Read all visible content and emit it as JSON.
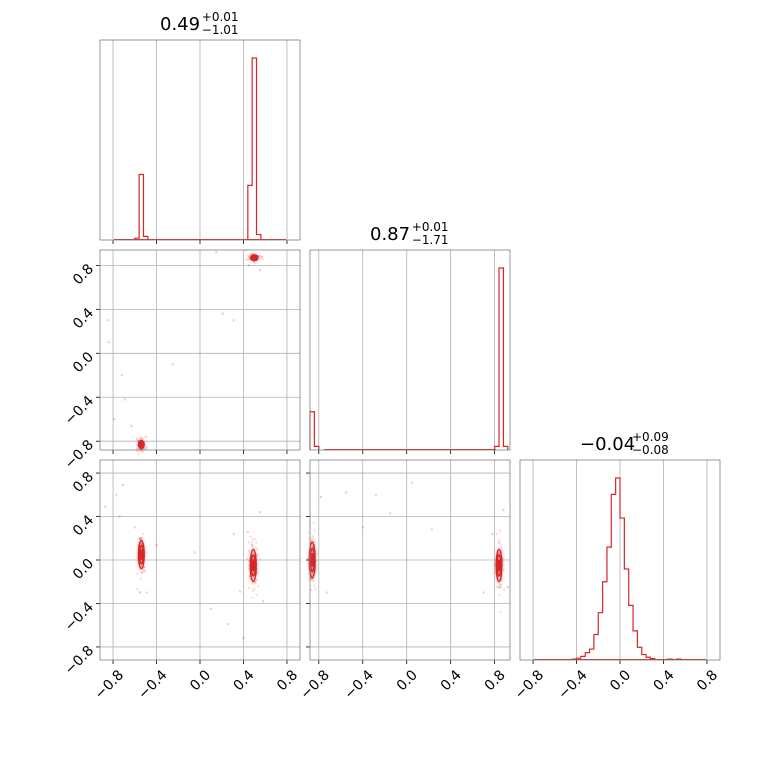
{
  "chart_data": {
    "type": "corner",
    "color": "#d62728",
    "grid": true,
    "ticks": [
      -0.8,
      -0.4,
      0.0,
      0.4,
      0.8
    ],
    "tick_labels": [
      "−0.8",
      "−0.4",
      "0.0",
      "0.4",
      "0.8"
    ],
    "parameters": [
      {
        "title": {
          "median": "0.49",
          "plus": "+0.01",
          "minus": "−1.01"
        },
        "range": [
          -0.92,
          0.92
        ],
        "histogram": {
          "bin_width": 0.04,
          "bins": [
            [
              -0.6,
              0.01
            ],
            [
              -0.56,
              0.36
            ],
            [
              -0.52,
              0.02
            ],
            [
              0.44,
              0.3
            ],
            [
              0.48,
              1.0
            ],
            [
              0.52,
              0.03
            ]
          ]
        }
      },
      {
        "title": {
          "median": "0.87",
          "plus": "+0.01",
          "minus": "−1.71"
        },
        "range": [
          -0.88,
          0.94
        ],
        "histogram": {
          "bin_width": 0.04,
          "bins": [
            [
              -0.88,
              0.21
            ],
            [
              -0.84,
              0.02
            ],
            [
              0.8,
              0.02
            ],
            [
              0.84,
              1.0
            ],
            [
              0.88,
              0.02
            ]
          ]
        }
      },
      {
        "title": {
          "median": "−0.04",
          "plus": "+0.09",
          "minus": "−0.08"
        },
        "range": [
          -0.92,
          0.92
        ],
        "histogram": {
          "bin_width": 0.04,
          "bins": [
            [
              -0.44,
              0.005
            ],
            [
              -0.4,
              0.01
            ],
            [
              -0.36,
              0.02
            ],
            [
              -0.32,
              0.04
            ],
            [
              -0.28,
              0.06
            ],
            [
              -0.24,
              0.14
            ],
            [
              -0.2,
              0.26
            ],
            [
              -0.16,
              0.43
            ],
            [
              -0.12,
              0.62
            ],
            [
              -0.08,
              0.91
            ],
            [
              -0.04,
              1.0
            ],
            [
              0.0,
              0.78
            ],
            [
              0.04,
              0.5
            ],
            [
              0.08,
              0.3
            ],
            [
              0.12,
              0.16
            ],
            [
              0.16,
              0.07
            ],
            [
              0.2,
              0.03
            ],
            [
              0.24,
              0.015
            ],
            [
              0.28,
              0.008
            ],
            [
              0.44,
              0.005
            ],
            [
              0.52,
              0.005
            ]
          ]
        }
      }
    ],
    "pairs": [
      {
        "x_param": 0,
        "y_param": 1,
        "clusters": [
          {
            "x": 0.5,
            "y": 0.87,
            "sx": 0.018,
            "sy": 0.012
          },
          {
            "x": -0.54,
            "y": -0.83,
            "sx": 0.012,
            "sy": 0.02
          }
        ],
        "scatter": [
          [
            -0.72,
            -0.2
          ],
          [
            -0.84,
            0.1
          ],
          [
            -0.85,
            0.3
          ],
          [
            -0.79,
            -0.6
          ],
          [
            -0.69,
            -0.42
          ],
          [
            -0.63,
            -0.66
          ],
          [
            0.15,
            0.92
          ],
          [
            0.21,
            0.36
          ],
          [
            0.31,
            0.3
          ],
          [
            0.42,
            0.94
          ],
          [
            0.55,
            0.76
          ],
          [
            -0.5,
            -0.76
          ],
          [
            0.45,
            0.8
          ],
          [
            -0.25,
            -0.1
          ]
        ]
      },
      {
        "x_param": 0,
        "y_param": 2,
        "clusters": [
          {
            "x": -0.54,
            "y": 0.05,
            "sx": 0.012,
            "sy": 0.07
          },
          {
            "x": 0.49,
            "y": -0.05,
            "sx": 0.015,
            "sy": 0.08
          }
        ],
        "scatter": [
          [
            -0.71,
            0.69
          ],
          [
            -0.77,
            0.6
          ],
          [
            -0.87,
            0.49
          ],
          [
            -0.74,
            0.4
          ],
          [
            -0.6,
            0.3
          ],
          [
            -0.4,
            0.14
          ],
          [
            -0.05,
            0.07
          ],
          [
            0.31,
            0.24
          ],
          [
            0.26,
            -0.59
          ],
          [
            0.37,
            -0.29
          ],
          [
            0.44,
            0.26
          ],
          [
            -0.49,
            -0.3
          ],
          [
            0.55,
            0.44
          ],
          [
            0.58,
            -0.38
          ],
          [
            0.1,
            -0.45
          ],
          [
            0.4,
            -0.72
          ]
        ]
      },
      {
        "x_param": 1,
        "y_param": 2,
        "clusters": [
          {
            "x": -0.86,
            "y": 0.0,
            "sx": 0.012,
            "sy": 0.09
          },
          {
            "x": 0.84,
            "y": -0.05,
            "sx": 0.012,
            "sy": 0.08
          }
        ],
        "scatter": [
          [
            -0.78,
            0.58
          ],
          [
            -0.55,
            0.62
          ],
          [
            -0.28,
            0.6
          ],
          [
            -0.15,
            0.43
          ],
          [
            0.23,
            0.28
          ],
          [
            -0.73,
            -0.3
          ],
          [
            0.78,
            0.24
          ],
          [
            0.88,
            0.46
          ],
          [
            0.05,
            0.71
          ],
          [
            -0.4,
            0.3
          ],
          [
            0.7,
            -0.3
          ],
          [
            0.92,
            -0.25
          ]
        ]
      }
    ]
  }
}
